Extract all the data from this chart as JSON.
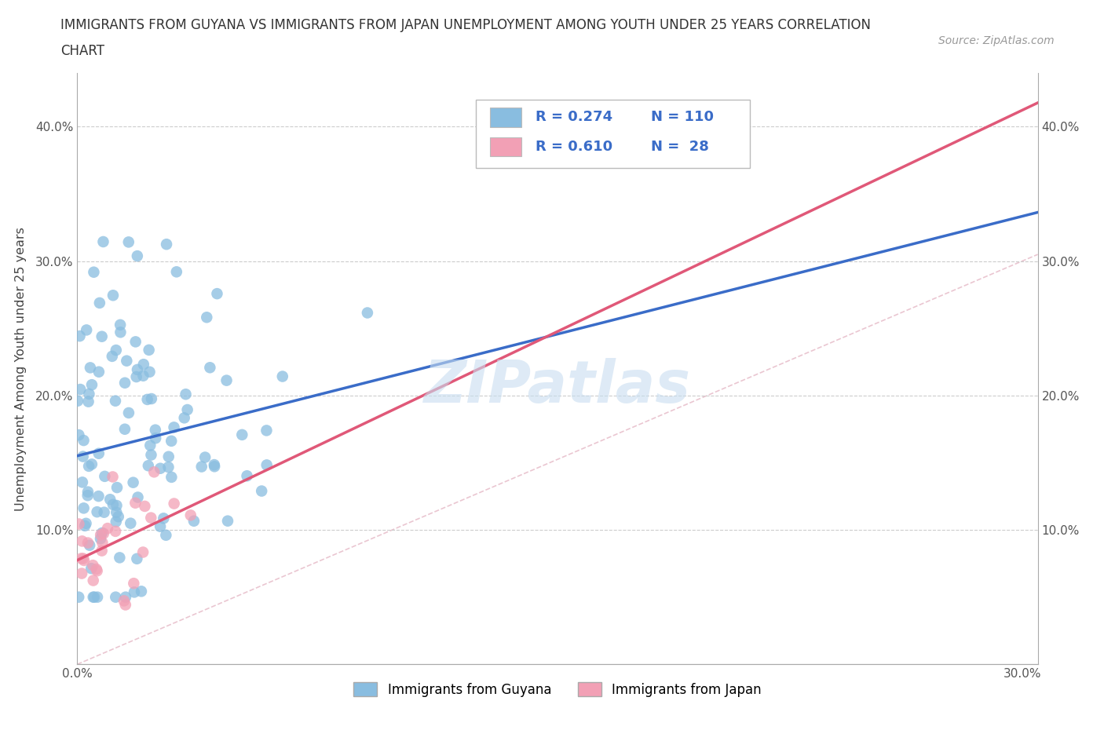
{
  "title_line1": "IMMIGRANTS FROM GUYANA VS IMMIGRANTS FROM JAPAN UNEMPLOYMENT AMONG YOUTH UNDER 25 YEARS CORRELATION",
  "title_line2": "CHART",
  "source": "Source: ZipAtlas.com",
  "ylabel": "Unemployment Among Youth under 25 years",
  "xlim": [
    0.0,
    0.305
  ],
  "ylim": [
    0.0,
    0.44
  ],
  "xtick_positions": [
    0.0,
    0.05,
    0.1,
    0.15,
    0.2,
    0.25,
    0.3
  ],
  "xticklabels": [
    "0.0%",
    "",
    "",
    "",
    "",
    "",
    "30.0%"
  ],
  "ytick_positions": [
    0.0,
    0.1,
    0.2,
    0.3,
    0.4
  ],
  "yticklabels": [
    "",
    "10.0%",
    "20.0%",
    "30.0%",
    "40.0%"
  ],
  "guyana_color": "#89bde0",
  "japan_color": "#f2a0b5",
  "guyana_line_color": "#3a6cc8",
  "japan_line_color": "#e05878",
  "diagonal_color": "#e8c0cc",
  "watermark": "ZIPatlas",
  "watermark_color": "#c8ddf0",
  "legend_color": "#3a6cc8",
  "legend_box_edge": "#bbbbbb",
  "guyana_label": "Immigrants from Guyana",
  "japan_label": "Immigrants from Japan",
  "guyana_R": "0.274",
  "guyana_N": "110",
  "japan_R": "0.610",
  "japan_N": "28",
  "grid_color": "#cccccc",
  "spine_color": "#aaaaaa",
  "tick_label_color": "#555555"
}
